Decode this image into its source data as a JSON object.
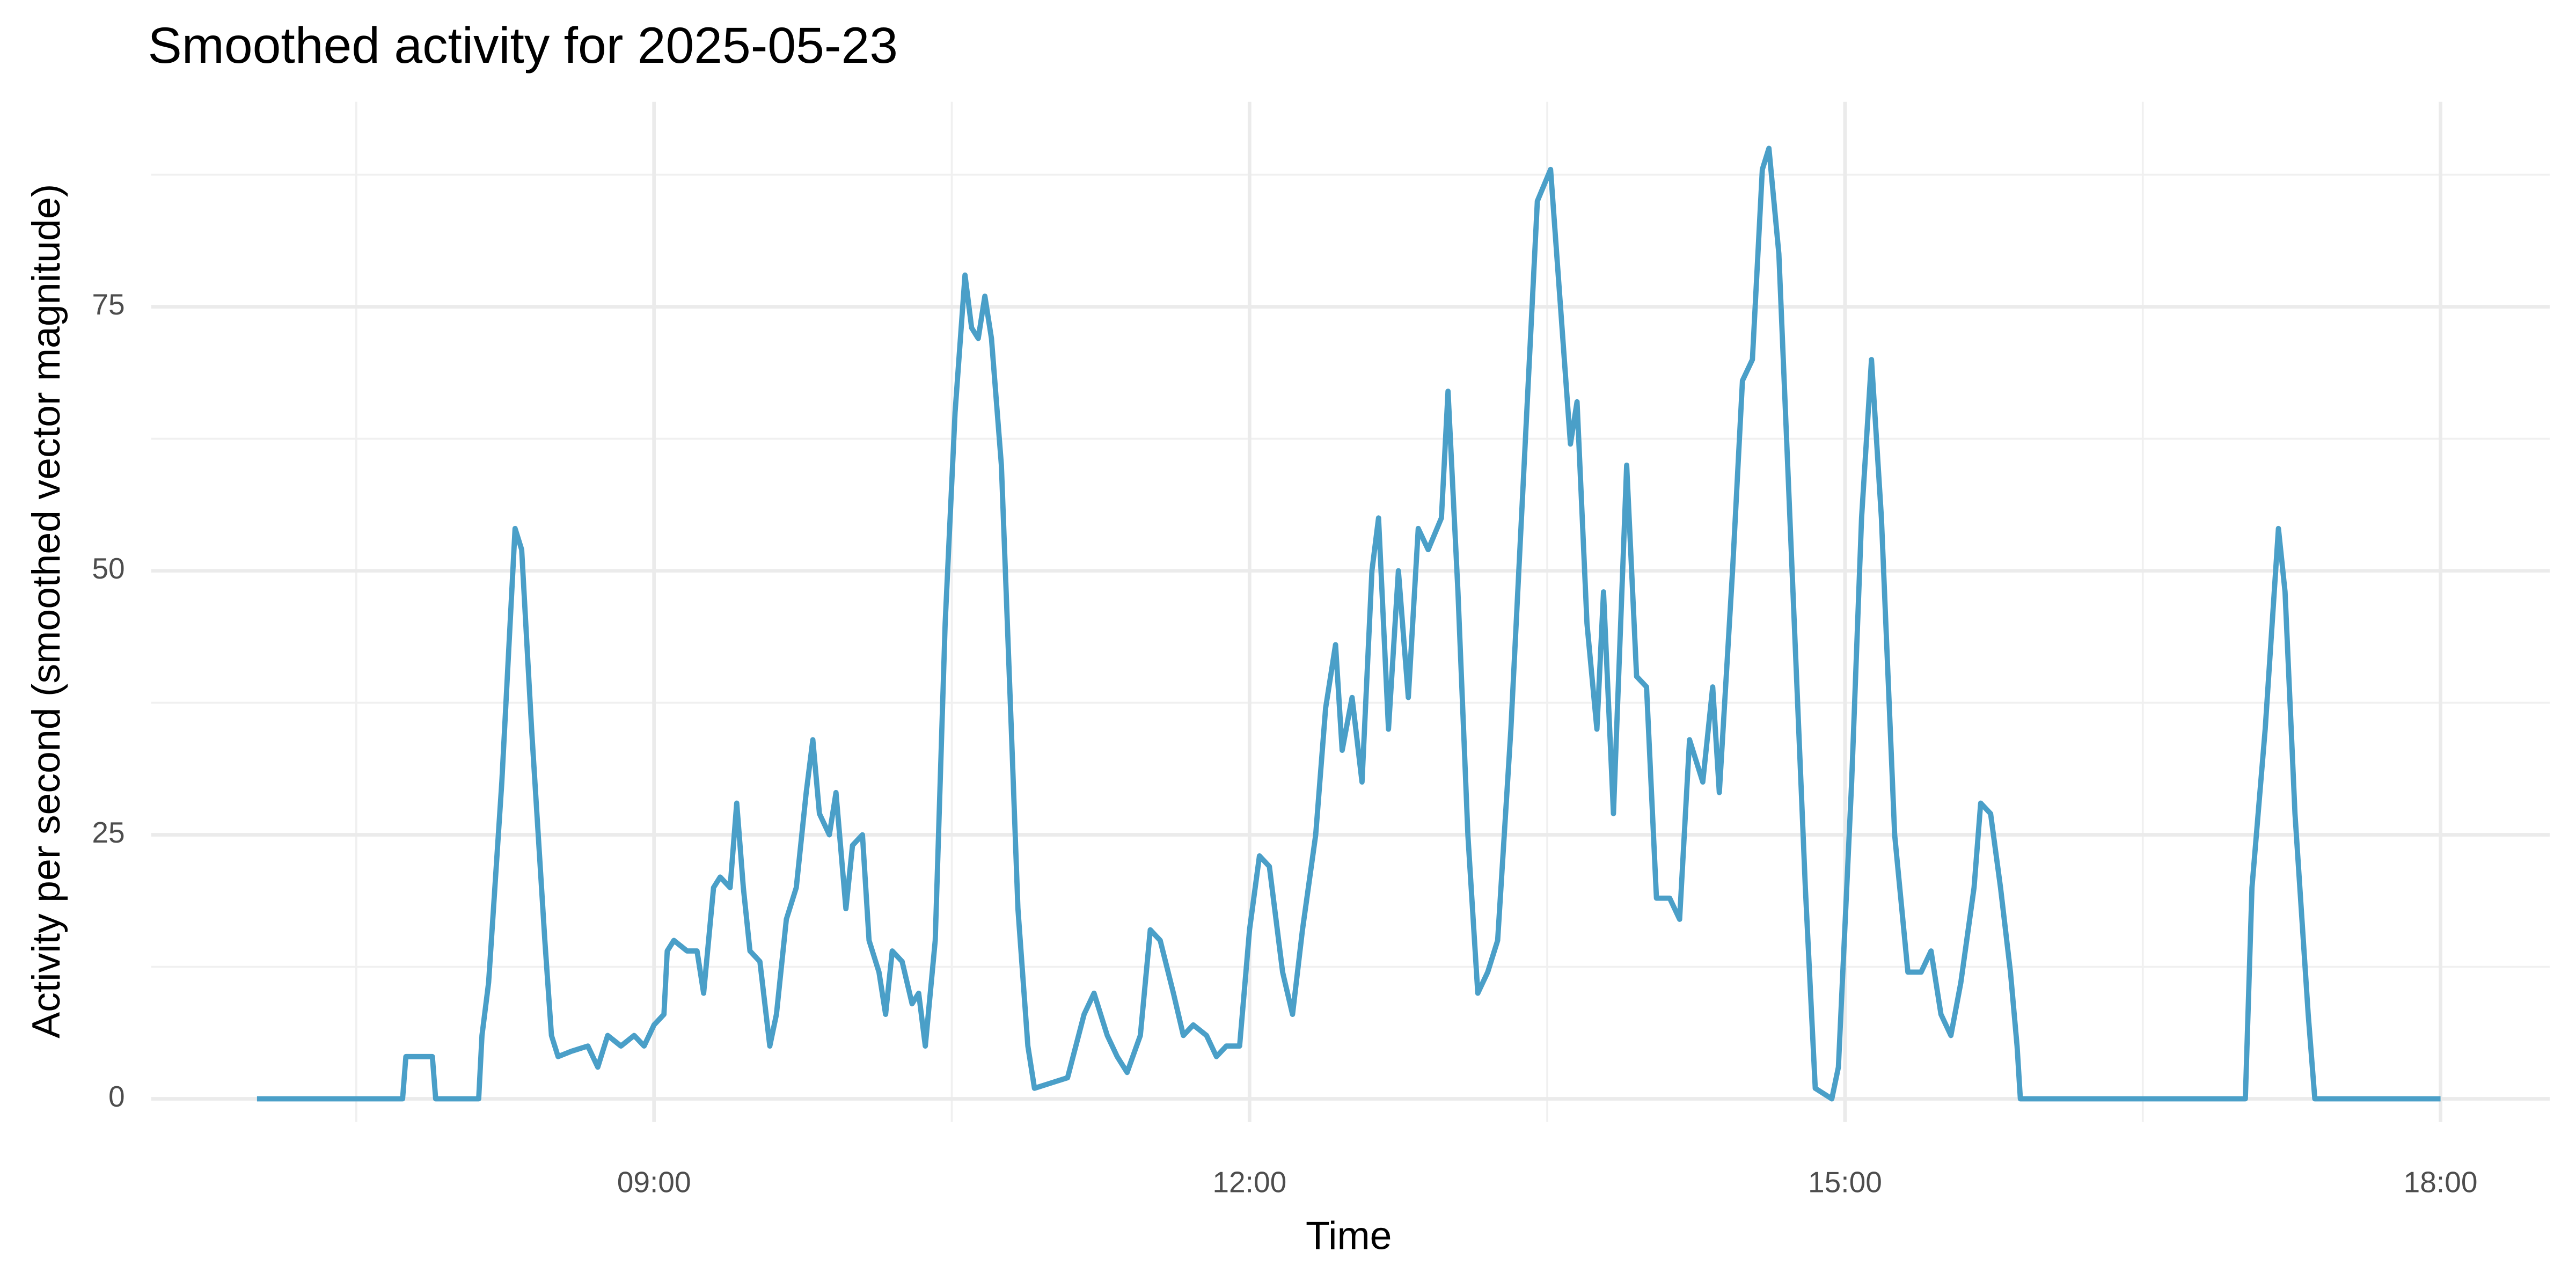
{
  "chart_data": {
    "type": "line",
    "title": "Smoothed activity for 2025-05-23",
    "xlabel": "Time",
    "ylabel": "Activity per second (smoothed vector magnitude)",
    "x": [
      "07:00",
      "07:44",
      "07:45",
      "07:53",
      "07:54",
      "08:07",
      "08:08",
      "08:10",
      "08:14",
      "08:18",
      "08:20",
      "08:23",
      "08:27",
      "08:29",
      "08:31",
      "08:35",
      "08:40",
      "08:43",
      "08:46",
      "08:50",
      "08:54",
      "08:57",
      "09:00",
      "09:03",
      "09:04",
      "09:06",
      "09:10",
      "09:13",
      "09:15",
      "09:18",
      "09:20",
      "09:23",
      "09:25",
      "09:27",
      "09:29",
      "09:32",
      "09:35",
      "09:37",
      "09:40",
      "09:43",
      "09:46",
      "09:48",
      "09:50",
      "09:53",
      "09:55",
      "09:58",
      "10:00",
      "10:03",
      "10:05",
      "10:08",
      "10:10",
      "10:12",
      "10:15",
      "10:18",
      "10:20",
      "10:22",
      "10:25",
      "10:28",
      "10:31",
      "10:34",
      "10:36",
      "10:38",
      "10:40",
      "10:42",
      "10:45",
      "10:48",
      "10:50",
      "10:53",
      "10:55",
      "11:00",
      "11:05",
      "11:10",
      "11:13",
      "11:17",
      "11:20",
      "11:23",
      "11:27",
      "11:30",
      "11:33",
      "11:37",
      "11:40",
      "11:43",
      "11:47",
      "11:50",
      "11:53",
      "11:57",
      "12:00",
      "12:03",
      "12:06",
      "12:10",
      "12:13",
      "12:16",
      "12:20",
      "12:23",
      "12:26",
      "12:28",
      "12:31",
      "12:34",
      "12:37",
      "12:39",
      "12:42",
      "12:45",
      "12:48",
      "12:51",
      "12:54",
      "12:58",
      "13:00",
      "13:03",
      "13:06",
      "13:09",
      "13:12",
      "13:15",
      "13:19",
      "13:23",
      "13:27",
      "13:31",
      "13:34",
      "13:37",
      "13:39",
      "13:42",
      "13:45",
      "13:47",
      "13:50",
      "13:54",
      "13:57",
      "14:00",
      "14:03",
      "14:07",
      "14:10",
      "14:13",
      "14:17",
      "14:20",
      "14:22",
      "14:26",
      "14:29",
      "14:32",
      "14:35",
      "14:37",
      "14:40",
      "14:44",
      "14:48",
      "14:51",
      "14:56",
      "14:58",
      "15:02",
      "15:05",
      "15:08",
      "15:11",
      "15:15",
      "15:19",
      "15:23",
      "15:26",
      "15:29",
      "15:32",
      "15:35",
      "15:39",
      "15:41",
      "15:44",
      "15:47",
      "15:50",
      "15:52",
      "15:53",
      "17:01",
      "17:03",
      "17:07",
      "17:11",
      "17:13",
      "17:16",
      "17:20",
      "17:22",
      "18:00"
    ],
    "series": [
      {
        "name": "activity",
        "color": "#4a9fc8",
        "values": [
          0,
          0,
          4,
          4,
          0,
          0,
          6,
          11,
          30,
          54,
          52,
          35,
          15,
          6,
          4,
          4.5,
          5,
          3,
          6,
          5,
          6,
          5,
          7,
          8,
          14,
          15,
          14,
          14,
          10,
          20,
          21,
          20,
          28,
          20,
          14,
          13,
          5,
          8,
          17,
          20,
          29,
          34,
          27,
          25,
          29,
          18,
          24,
          25,
          15,
          12,
          8,
          14,
          13,
          9,
          10,
          5,
          15,
          45,
          65,
          78,
          73,
          72,
          76,
          72,
          60,
          35,
          18,
          5,
          1,
          1.5,
          2,
          8,
          10,
          6,
          4,
          2.5,
          6,
          16,
          15,
          10,
          6,
          7,
          6,
          4,
          5,
          5,
          16,
          23,
          22,
          12,
          8,
          16,
          25,
          37,
          43,
          33,
          38,
          30,
          50,
          55,
          35,
          50,
          38,
          54,
          52,
          55,
          67,
          48,
          25,
          10,
          12,
          15,
          35,
          60,
          85,
          88,
          75,
          62,
          66,
          45,
          35,
          48,
          27,
          60,
          40,
          39,
          19,
          19,
          17,
          34,
          30,
          39,
          29,
          50,
          68,
          70,
          88,
          90,
          80,
          50,
          20,
          1,
          0,
          3,
          30,
          55,
          70,
          55,
          25,
          12,
          12,
          14,
          8,
          6,
          11,
          20,
          28,
          27,
          20,
          12,
          5,
          0,
          0,
          20,
          35,
          54,
          48,
          27,
          8,
          0,
          0
        ]
      }
    ],
    "xlim": [
      "06:28",
      "18:33"
    ],
    "xticks": [
      "09:00",
      "12:00",
      "15:00",
      "18:00"
    ],
    "minor_xticks": [
      "07:30",
      "10:30",
      "13:30",
      "16:30"
    ],
    "ylim": [
      -2.2,
      94.4
    ],
    "yticks": [
      0,
      25,
      50,
      75
    ],
    "minor_yticks": [
      12.5,
      37.5,
      62.5,
      87.5
    ],
    "grid": true
  }
}
